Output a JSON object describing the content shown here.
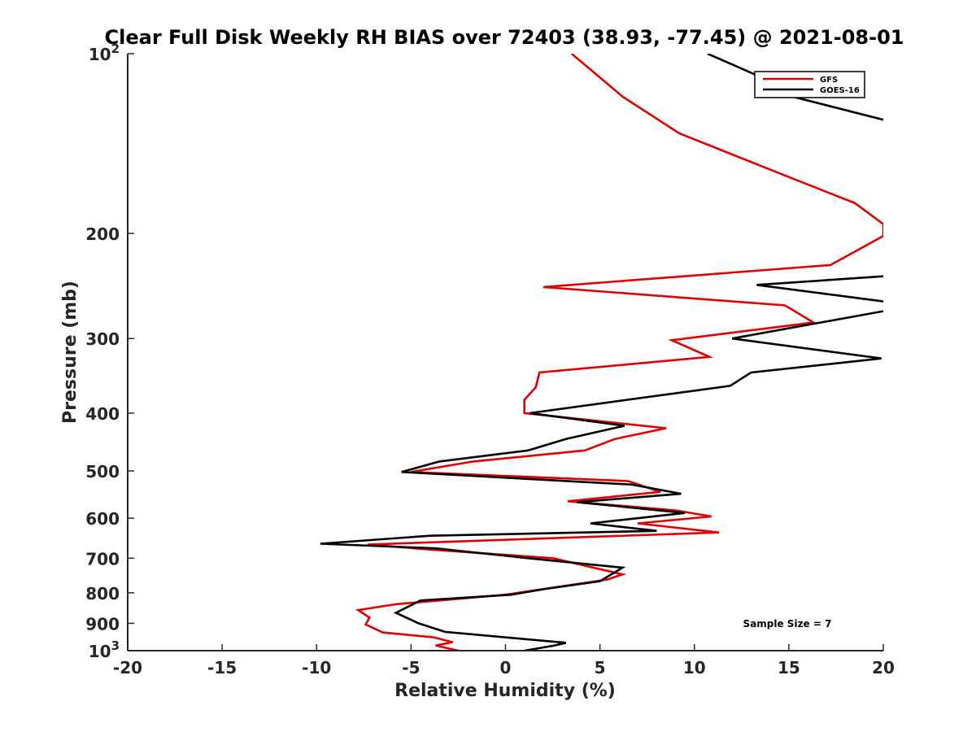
{
  "chart_data": {
    "type": "line",
    "title": "Clear Full Disk Weekly RH BIAS over 72403 (38.93, -77.45) @ 2021-08-01",
    "xlabel": "Relative Humidity (%)",
    "ylabel": "Pressure (mb)",
    "xlim": [
      -20,
      20
    ],
    "ylim": [
      1000,
      100
    ],
    "y_scale": "log",
    "x_ticks": [
      "-20",
      "-15",
      "-10",
      "-5",
      "0",
      "5",
      "10",
      "15",
      "20"
    ],
    "y_ticks": [
      {
        "value": 100,
        "label": "10",
        "sup": "2"
      },
      {
        "value": 200,
        "label": "200",
        "sup": ""
      },
      {
        "value": 300,
        "label": "300",
        "sup": ""
      },
      {
        "value": 400,
        "label": "400",
        "sup": ""
      },
      {
        "value": 500,
        "label": "500",
        "sup": ""
      },
      {
        "value": 600,
        "label": "600",
        "sup": ""
      },
      {
        "value": 700,
        "label": "700",
        "sup": ""
      },
      {
        "value": 800,
        "label": "800",
        "sup": ""
      },
      {
        "value": 900,
        "label": "900",
        "sup": ""
      },
      {
        "value": 1000,
        "label": "10",
        "sup": "3"
      }
    ],
    "grid": false,
    "legend_position": "top-right",
    "annotation": "Sample Size = 7",
    "series": [
      {
        "name": "GFS",
        "color": "#e00000",
        "points": [
          {
            "x": 3.5,
            "p": 100
          },
          {
            "x": 6.2,
            "p": 118
          },
          {
            "x": 9.2,
            "p": 136
          },
          {
            "x": 14.8,
            "p": 160
          },
          {
            "x": 18.5,
            "p": 178
          },
          {
            "x": 20.0,
            "p": 193
          },
          {
            "x": 20.0,
            "p": 202
          },
          {
            "x": 17.2,
            "p": 226
          },
          {
            "x": 2.0,
            "p": 246
          },
          {
            "x": 14.8,
            "p": 264
          },
          {
            "x": 16.3,
            "p": 282
          },
          {
            "x": 8.8,
            "p": 302
          },
          {
            "x": 10.8,
            "p": 322
          },
          {
            "x": 1.8,
            "p": 342
          },
          {
            "x": 1.6,
            "p": 362
          },
          {
            "x": 1.0,
            "p": 380
          },
          {
            "x": 1.0,
            "p": 400
          },
          {
            "x": 8.5,
            "p": 424
          },
          {
            "x": 5.8,
            "p": 442
          },
          {
            "x": 4.2,
            "p": 462
          },
          {
            "x": -1.7,
            "p": 482
          },
          {
            "x": -5.0,
            "p": 502
          },
          {
            "x": 6.5,
            "p": 520
          },
          {
            "x": 8.2,
            "p": 542
          },
          {
            "x": 3.3,
            "p": 562
          },
          {
            "x": 9.0,
            "p": 582
          },
          {
            "x": 10.9,
            "p": 596
          },
          {
            "x": 7.0,
            "p": 612
          },
          {
            "x": 11.3,
            "p": 634
          },
          {
            "x": -7.3,
            "p": 664
          },
          {
            "x": -4.0,
            "p": 677
          },
          {
            "x": 2.5,
            "p": 700
          },
          {
            "x": 6.2,
            "p": 745
          },
          {
            "x": 5.4,
            "p": 760
          },
          {
            "x": 1.8,
            "p": 790
          },
          {
            "x": 0.0,
            "p": 806
          },
          {
            "x": -5.8,
            "p": 836
          },
          {
            "x": -7.8,
            "p": 855
          },
          {
            "x": -7.2,
            "p": 880
          },
          {
            "x": -7.4,
            "p": 904
          },
          {
            "x": -6.5,
            "p": 932
          },
          {
            "x": -3.8,
            "p": 950
          },
          {
            "x": -2.8,
            "p": 968
          },
          {
            "x": -3.7,
            "p": 980
          },
          {
            "x": -2.5,
            "p": 1000
          }
        ]
      },
      {
        "name": "GOES-16",
        "color": "#000000",
        "points": [
          {
            "x": 10.7,
            "p": 100
          },
          {
            "x": 14.8,
            "p": 114
          },
          {
            "x": 15.2,
            "p": 118
          },
          {
            "x": 20.0,
            "p": 129
          },
          {
            "x": null,
            "p": 137
          },
          {
            "x": 20.0,
            "p": 236
          },
          {
            "x": 13.3,
            "p": 244
          },
          {
            "x": 20.0,
            "p": 260
          },
          {
            "x": null,
            "p": 264
          },
          {
            "x": 20.0,
            "p": 270
          },
          {
            "x": 12.0,
            "p": 300
          },
          {
            "x": 19.9,
            "p": 324
          },
          {
            "x": 13.0,
            "p": 342
          },
          {
            "x": 11.9,
            "p": 360
          },
          {
            "x": 1.3,
            "p": 400
          },
          {
            "x": 6.3,
            "p": 420
          },
          {
            "x": 3.2,
            "p": 442
          },
          {
            "x": 1.2,
            "p": 462
          },
          {
            "x": -3.5,
            "p": 482
          },
          {
            "x": -5.5,
            "p": 502
          },
          {
            "x": 6.7,
            "p": 527
          },
          {
            "x": 9.3,
            "p": 546
          },
          {
            "x": 3.8,
            "p": 564
          },
          {
            "x": 9.5,
            "p": 588
          },
          {
            "x": 4.5,
            "p": 612
          },
          {
            "x": 8.0,
            "p": 630
          },
          {
            "x": -4.0,
            "p": 642
          },
          {
            "x": -9.8,
            "p": 662
          },
          {
            "x": -3.7,
            "p": 674
          },
          {
            "x": 1.2,
            "p": 700
          },
          {
            "x": 6.2,
            "p": 726
          },
          {
            "x": 5.0,
            "p": 765
          },
          {
            "x": 2.1,
            "p": 788
          },
          {
            "x": 0.3,
            "p": 806
          },
          {
            "x": -4.5,
            "p": 824
          },
          {
            "x": -5.8,
            "p": 864
          },
          {
            "x": -4.6,
            "p": 900
          },
          {
            "x": -3.2,
            "p": 930
          },
          {
            "x": 3.2,
            "p": 970
          },
          {
            "x": 2.6,
            "p": 980
          },
          {
            "x": 1.0,
            "p": 1000
          }
        ]
      }
    ]
  }
}
